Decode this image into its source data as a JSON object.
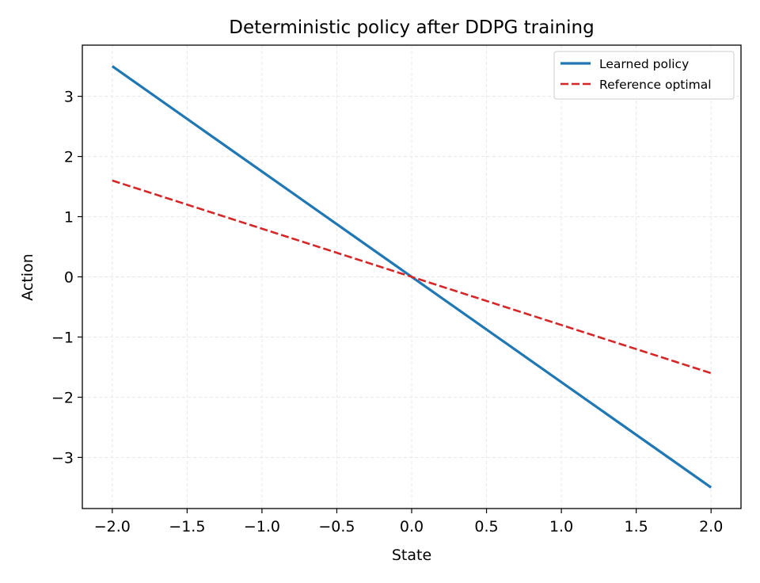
{
  "chart_data": {
    "type": "line",
    "title": "Deterministic policy after DDPG training",
    "xlabel": "State",
    "ylabel": "Action",
    "xlim": [
      -2.2,
      2.2
    ],
    "ylim": [
      -3.85,
      3.85
    ],
    "xticks": [
      -2.0,
      -1.5,
      -1.0,
      -0.5,
      0.0,
      0.5,
      1.0,
      1.5,
      2.0
    ],
    "xtick_labels": [
      "−2.0",
      "−1.5",
      "−1.0",
      "−0.5",
      "0.0",
      "0.5",
      "1.0",
      "1.5",
      "2.0"
    ],
    "yticks": [
      3,
      2,
      1,
      0,
      -1,
      -2,
      -3
    ],
    "ytick_labels": [
      "3",
      "2",
      "1",
      "0",
      "−1",
      "−2",
      "−3"
    ],
    "grid": true,
    "legend_position": "top-right",
    "series": [
      {
        "name": "Learned policy",
        "color": "#1f77b4",
        "style": "solid",
        "x": [
          -2.0,
          2.0
        ],
        "y": [
          3.5,
          -3.5
        ]
      },
      {
        "name": "Reference optimal",
        "color": "#d62728",
        "style": "dashed",
        "x": [
          -2.0,
          2.0
        ],
        "y": [
          1.6,
          -1.6
        ]
      }
    ]
  }
}
